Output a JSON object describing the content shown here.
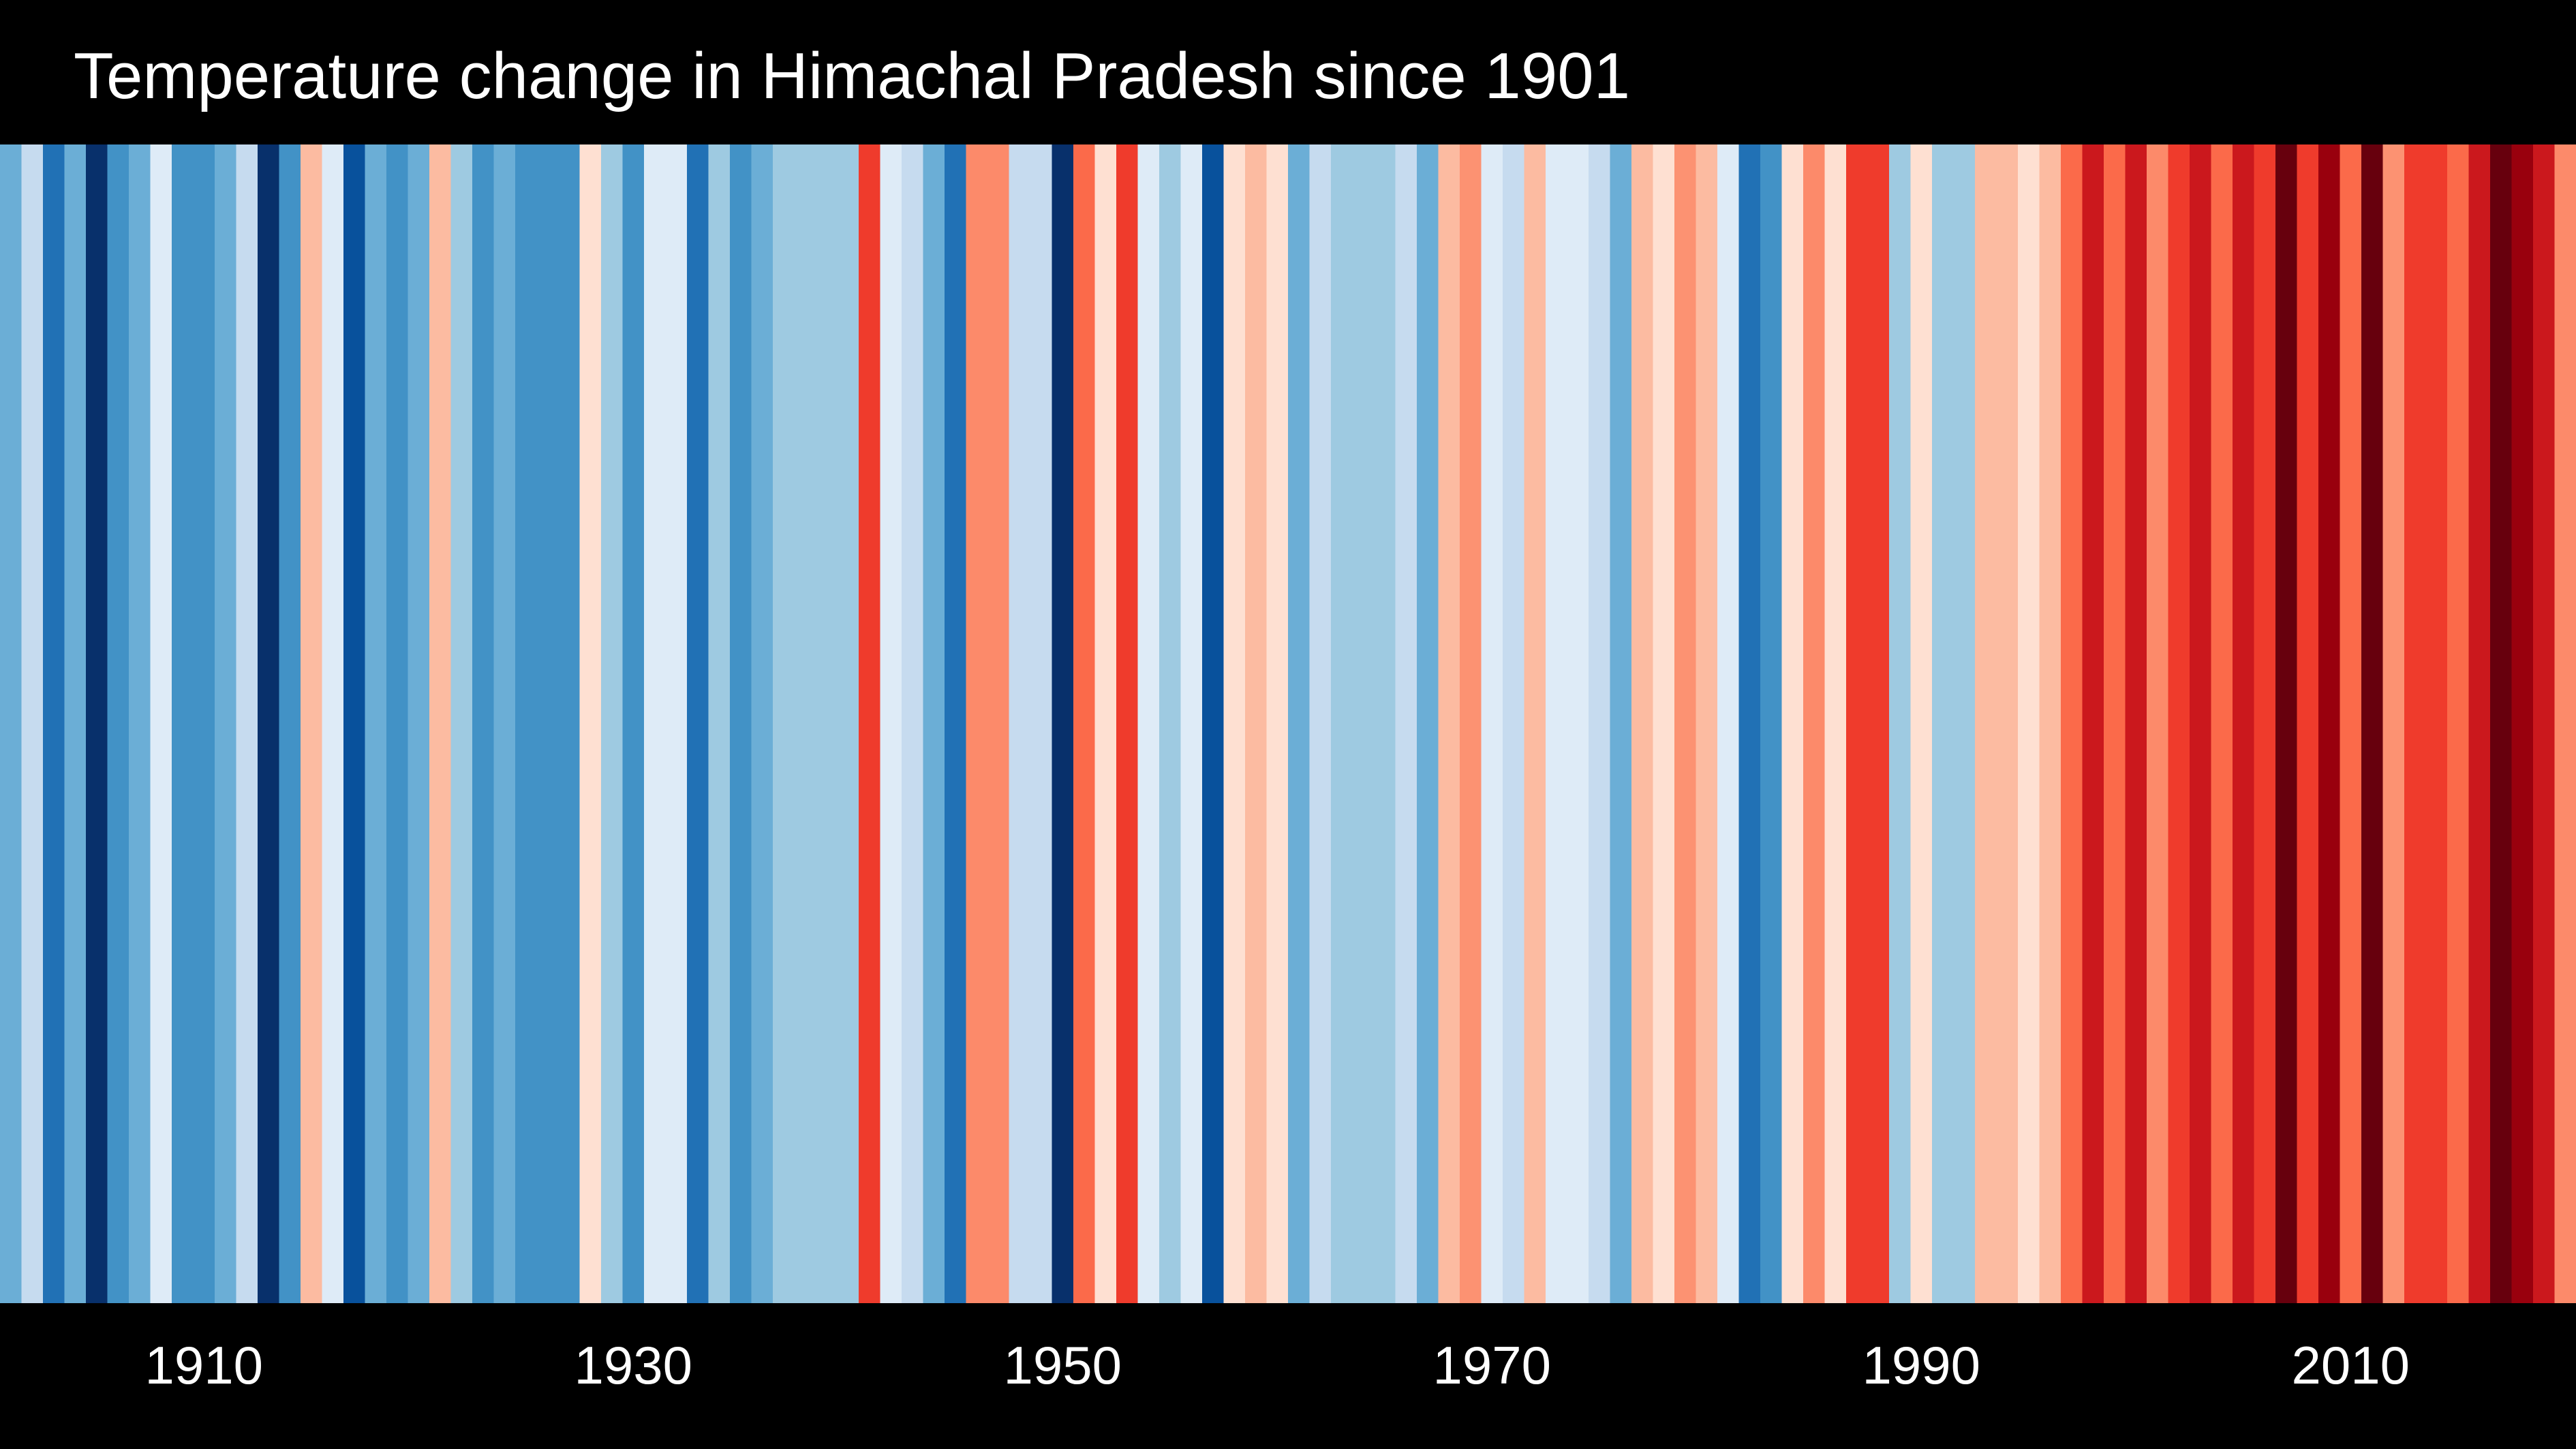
{
  "chart_data": {
    "type": "heatmap",
    "title": "Temperature change in Himachal Pradesh since 1901",
    "x_start": 1901,
    "x_end": 2020,
    "xticks": [
      1910,
      1930,
      1950,
      1970,
      1990,
      2010
    ],
    "legend": "none",
    "grid": false,
    "colors": {
      "background": "#000000",
      "text": "#ffffff"
    },
    "stripe_colors": [
      "#6baed6",
      "#c6dbef",
      "#2171b5",
      "#6baed6",
      "#08306b",
      "#4292c6",
      "#6baed6",
      "#deebf7",
      "#4292c6",
      "#4292c6",
      "#6baed6",
      "#c6dbef",
      "#08306b",
      "#4292c6",
      "#fcbba1",
      "#deebf7",
      "#08519c",
      "#6baed6",
      "#4292c6",
      "#6baed6",
      "#fcbba1",
      "#9ecae1",
      "#4292c6",
      "#6baed6",
      "#4292c6",
      "#4292c6",
      "#4292c6",
      "#fee0d2",
      "#9ecae1",
      "#4292c6",
      "#deebf7",
      "#deebf7",
      "#2171b5",
      "#9ecae1",
      "#4292c6",
      "#6baed6",
      "#9ecae1",
      "#9ecae1",
      "#9ecae1",
      "#9ecae1",
      "#ef3b2c",
      "#deebf7",
      "#c6dbef",
      "#6baed6",
      "#2171b5",
      "#fc8a6a",
      "#fc8a6a",
      "#c6dbef",
      "#c6dbef",
      "#08306b",
      "#fb6a4a",
      "#fee0d2",
      "#ef3b2c",
      "#deebf7",
      "#9ecae1",
      "#deebf7",
      "#08519c",
      "#fee0d2",
      "#fcbba1",
      "#fee0d2",
      "#6baed6",
      "#c6dbef",
      "#9ecae1",
      "#9ecae1",
      "#9ecae1",
      "#c6dbef",
      "#6baed6",
      "#fcbba1",
      "#fc9272",
      "#deebf7",
      "#c6dbef",
      "#fcbba1",
      "#deebf7",
      "#deebf7",
      "#c6dbef",
      "#6baed6",
      "#fcbba1",
      "#fee0d2",
      "#fc9272",
      "#fcbba1",
      "#deebf7",
      "#2171b5",
      "#4292c6",
      "#fee0d2",
      "#fc8a6a",
      "#fee0d2",
      "#ef3b2c",
      "#ef3b2c",
      "#9ecae1",
      "#fee0d2",
      "#9ecae1",
      "#9ecae1",
      "#fcbba1",
      "#fcbba1",
      "#fee0d2",
      "#fcbba1",
      "#fb6a4a",
      "#cb181d",
      "#fb6a4a",
      "#cb181d",
      "#fc8a6a",
      "#ef3b2c",
      "#cb181d",
      "#fb6a4a",
      "#cb181d",
      "#ef3b2c",
      "#67000d",
      "#ef3b2c",
      "#99000d",
      "#fb6a4a",
      "#67000d",
      "#fc9272",
      "#ef3b2c",
      "#ef3b2c",
      "#fb6a4a",
      "#cb181d",
      "#67000d",
      "#99000d",
      "#cb181d",
      "#fc8a6a"
    ]
  }
}
